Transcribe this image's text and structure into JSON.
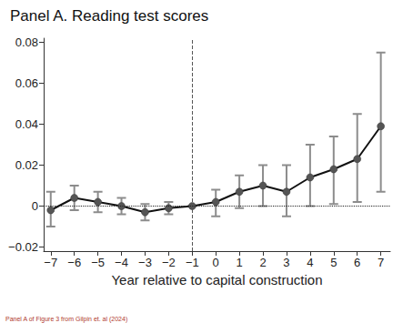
{
  "chart_data": {
    "type": "line",
    "title": "Panel A. Reading test scores",
    "x_label": "Year relative to capital construction",
    "source_note": "Panel A of Figure 3 from Gilpin et. al (2024)",
    "x": [
      -7,
      -6,
      -5,
      -4,
      -3,
      -2,
      -1,
      0,
      1,
      2,
      3,
      4,
      5,
      6,
      7
    ],
    "values": [
      -0.002,
      0.004,
      0.002,
      0.0,
      -0.003,
      -0.001,
      0.0,
      0.002,
      0.007,
      0.01,
      0.007,
      0.014,
      0.018,
      0.023,
      0.039
    ],
    "error_low": [
      -0.01,
      -0.002,
      -0.003,
      -0.004,
      -0.007,
      -0.004,
      0.0,
      -0.005,
      -0.001,
      0.0,
      -0.005,
      0.0,
      0.001,
      0.002,
      0.007
    ],
    "error_high": [
      0.007,
      0.01,
      0.007,
      0.004,
      0.001,
      0.002,
      0.0,
      0.008,
      0.015,
      0.02,
      0.02,
      0.03,
      0.034,
      0.045,
      0.075
    ],
    "color": "#555555",
    "error_color": "#8c8c8c",
    "marker": "circle",
    "reference_lines": {
      "x": -1,
      "y": 0
    },
    "xlim": [
      -7.3,
      7.4
    ],
    "xticks": [
      {
        "value": -7,
        "label": "−7"
      },
      {
        "value": -6,
        "label": "−6"
      },
      {
        "value": -5,
        "label": "−5"
      },
      {
        "value": -4,
        "label": "−4"
      },
      {
        "value": -3,
        "label": "−3"
      },
      {
        "value": -2,
        "label": "−2"
      },
      {
        "value": -1,
        "label": "−1"
      },
      0,
      1,
      2,
      3,
      4,
      5,
      6,
      7
    ],
    "ylim": [
      -0.022,
      0.082
    ],
    "yticks": [
      {
        "value": -0.02,
        "label": "−0.02"
      },
      0,
      0.02,
      0.04,
      0.06,
      0.08
    ],
    "grid": false
  }
}
